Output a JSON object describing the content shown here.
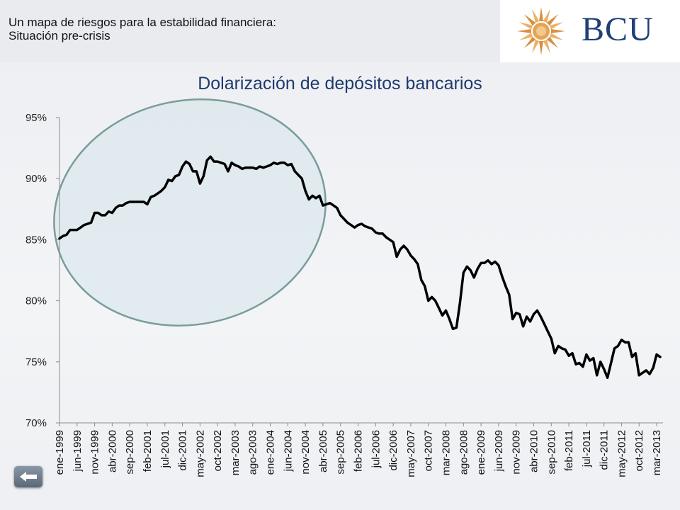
{
  "header": {
    "title": "Un mapa de riesgos para la estabilidad financiera: Situación pre-crisis"
  },
  "logo": {
    "text": "BCU",
    "icon": "sun-icon"
  },
  "nav": {
    "back_icon": "back-arrow-icon"
  },
  "colors": {
    "line": "#000000",
    "highlight_fill": "#cfe2e8",
    "highlight_stroke": "#7a9c9c",
    "title": "#1f3a6e",
    "logo": "#1f3f78"
  },
  "chart_data": {
    "type": "line",
    "title": "Dolarización de depósitos bancarios",
    "xlabel": "",
    "ylabel": "",
    "ylim": [
      0.7,
      0.95
    ],
    "yticks": [
      "70%",
      "75%",
      "80%",
      "85%",
      "90%",
      "95%"
    ],
    "grid": false,
    "x_tick_labels": [
      "ene-1999",
      "jun-1999",
      "nov-1999",
      "abr-2000",
      "sep-2000",
      "feb-2001",
      "jul-2001",
      "dic-2001",
      "may-2002",
      "oct-2002",
      "mar-2003",
      "ago-2003",
      "ene-2004",
      "jun-2004",
      "nov-2004",
      "abr-2005",
      "sep-2005",
      "feb-2006",
      "jul-2006",
      "dic-2006",
      "may-2007",
      "oct-2007",
      "mar-2008",
      "ago-2008",
      "ene-2009",
      "jun-2009",
      "nov-2009",
      "abr-2010",
      "sep-2010",
      "feb-2011",
      "jul-2011",
      "dic-2011",
      "may-2012",
      "oct-2012",
      "mar-2013"
    ],
    "annotation": "Situación pre-crisis (ene-1999 a abr-2005)",
    "series": [
      {
        "values": [
          0.851,
          0.853,
          0.854,
          0.858,
          0.858,
          0.858,
          0.86,
          0.862,
          0.863,
          0.864,
          0.872,
          0.872,
          0.87,
          0.87,
          0.873,
          0.872,
          0.876,
          0.878,
          0.878,
          0.88,
          0.881,
          0.881,
          0.881,
          0.881,
          0.881,
          0.879,
          0.885,
          0.886,
          0.888,
          0.89,
          0.893,
          0.899,
          0.898,
          0.902,
          0.903,
          0.91,
          0.914,
          0.912,
          0.906,
          0.906,
          0.896,
          0.902,
          0.915,
          0.918,
          0.914,
          0.914,
          0.913,
          0.912,
          0.906,
          0.913,
          0.911,
          0.91,
          0.908,
          0.909,
          0.909,
          0.909,
          0.908,
          0.91,
          0.909,
          0.91,
          0.911,
          0.913,
          0.912,
          0.913,
          0.913,
          0.911,
          0.912,
          0.906,
          0.903,
          0.9,
          0.89,
          0.883,
          0.886,
          0.884,
          0.886,
          0.878,
          0.879,
          0.88,
          0.878,
          0.876,
          0.87,
          0.867,
          0.864,
          0.862,
          0.86,
          0.862,
          0.863,
          0.861,
          0.86,
          0.859,
          0.856,
          0.855,
          0.855,
          0.852,
          0.85,
          0.848,
          0.836,
          0.842,
          0.845,
          0.842,
          0.837,
          0.834,
          0.83,
          0.817,
          0.812,
          0.8,
          0.803,
          0.8,
          0.794,
          0.788,
          0.792,
          0.785,
          0.777,
          0.778,
          0.798,
          0.823,
          0.828,
          0.825,
          0.819,
          0.826,
          0.831,
          0.831,
          0.833,
          0.83,
          0.832,
          0.829,
          0.82,
          0.812,
          0.805,
          0.785,
          0.79,
          0.789,
          0.779,
          0.787,
          0.783,
          0.789,
          0.792,
          0.787,
          0.781,
          0.775,
          0.769,
          0.757,
          0.763,
          0.761,
          0.76,
          0.755,
          0.757,
          0.748,
          0.749,
          0.746,
          0.756,
          0.751,
          0.753,
          0.739,
          0.75,
          0.744,
          0.737,
          0.749,
          0.761,
          0.763,
          0.768,
          0.766,
          0.766,
          0.754,
          0.757,
          0.739,
          0.741,
          0.743,
          0.74,
          0.745,
          0.756,
          0.754
        ]
      }
    ]
  }
}
